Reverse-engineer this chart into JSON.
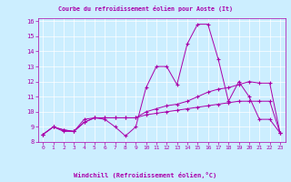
{
  "title": "Courbe du refroidissement éolien pour Aoste (It)",
  "xlabel": "Windchill (Refroidissement éolien,°C)",
  "background_color": "#cceeff",
  "line_color": "#aa00aa",
  "xlim": [
    -0.5,
    23.5
  ],
  "ylim": [
    8,
    16.2
  ],
  "yticks": [
    8,
    9,
    10,
    11,
    12,
    13,
    14,
    15,
    16
  ],
  "xticks": [
    0,
    1,
    2,
    3,
    4,
    5,
    6,
    7,
    8,
    9,
    10,
    11,
    12,
    13,
    14,
    15,
    16,
    17,
    18,
    19,
    20,
    21,
    22,
    23
  ],
  "series1_x": [
    0,
    1,
    2,
    3,
    4,
    5,
    6,
    7,
    8,
    9,
    10,
    11,
    12,
    13,
    14,
    15,
    16,
    17,
    18,
    19,
    20,
    21,
    22,
    23
  ],
  "series1_y": [
    8.5,
    9.0,
    8.7,
    8.7,
    9.5,
    9.6,
    9.5,
    9.0,
    8.4,
    9.0,
    11.6,
    13.0,
    13.0,
    11.8,
    14.5,
    15.8,
    15.8,
    13.5,
    10.7,
    12.0,
    11.0,
    9.5,
    9.5,
    8.6
  ],
  "series2_x": [
    0,
    1,
    2,
    3,
    4,
    5,
    6,
    7,
    8,
    9,
    10,
    11,
    12,
    13,
    14,
    15,
    16,
    17,
    18,
    19,
    20,
    21,
    22,
    23
  ],
  "series2_y": [
    8.5,
    9.0,
    8.8,
    8.7,
    9.3,
    9.6,
    9.6,
    9.6,
    9.6,
    9.6,
    10.0,
    10.2,
    10.4,
    10.5,
    10.7,
    11.0,
    11.3,
    11.5,
    11.6,
    11.8,
    12.0,
    11.9,
    11.9,
    8.6
  ],
  "series3_x": [
    0,
    1,
    2,
    3,
    4,
    5,
    6,
    7,
    8,
    9,
    10,
    11,
    12,
    13,
    14,
    15,
    16,
    17,
    18,
    19,
    20,
    21,
    22,
    23
  ],
  "series3_y": [
    8.5,
    9.0,
    8.8,
    8.7,
    9.3,
    9.6,
    9.6,
    9.6,
    9.6,
    9.6,
    9.8,
    9.9,
    10.0,
    10.1,
    10.2,
    10.3,
    10.4,
    10.5,
    10.6,
    10.7,
    10.7,
    10.7,
    10.7,
    8.6
  ]
}
